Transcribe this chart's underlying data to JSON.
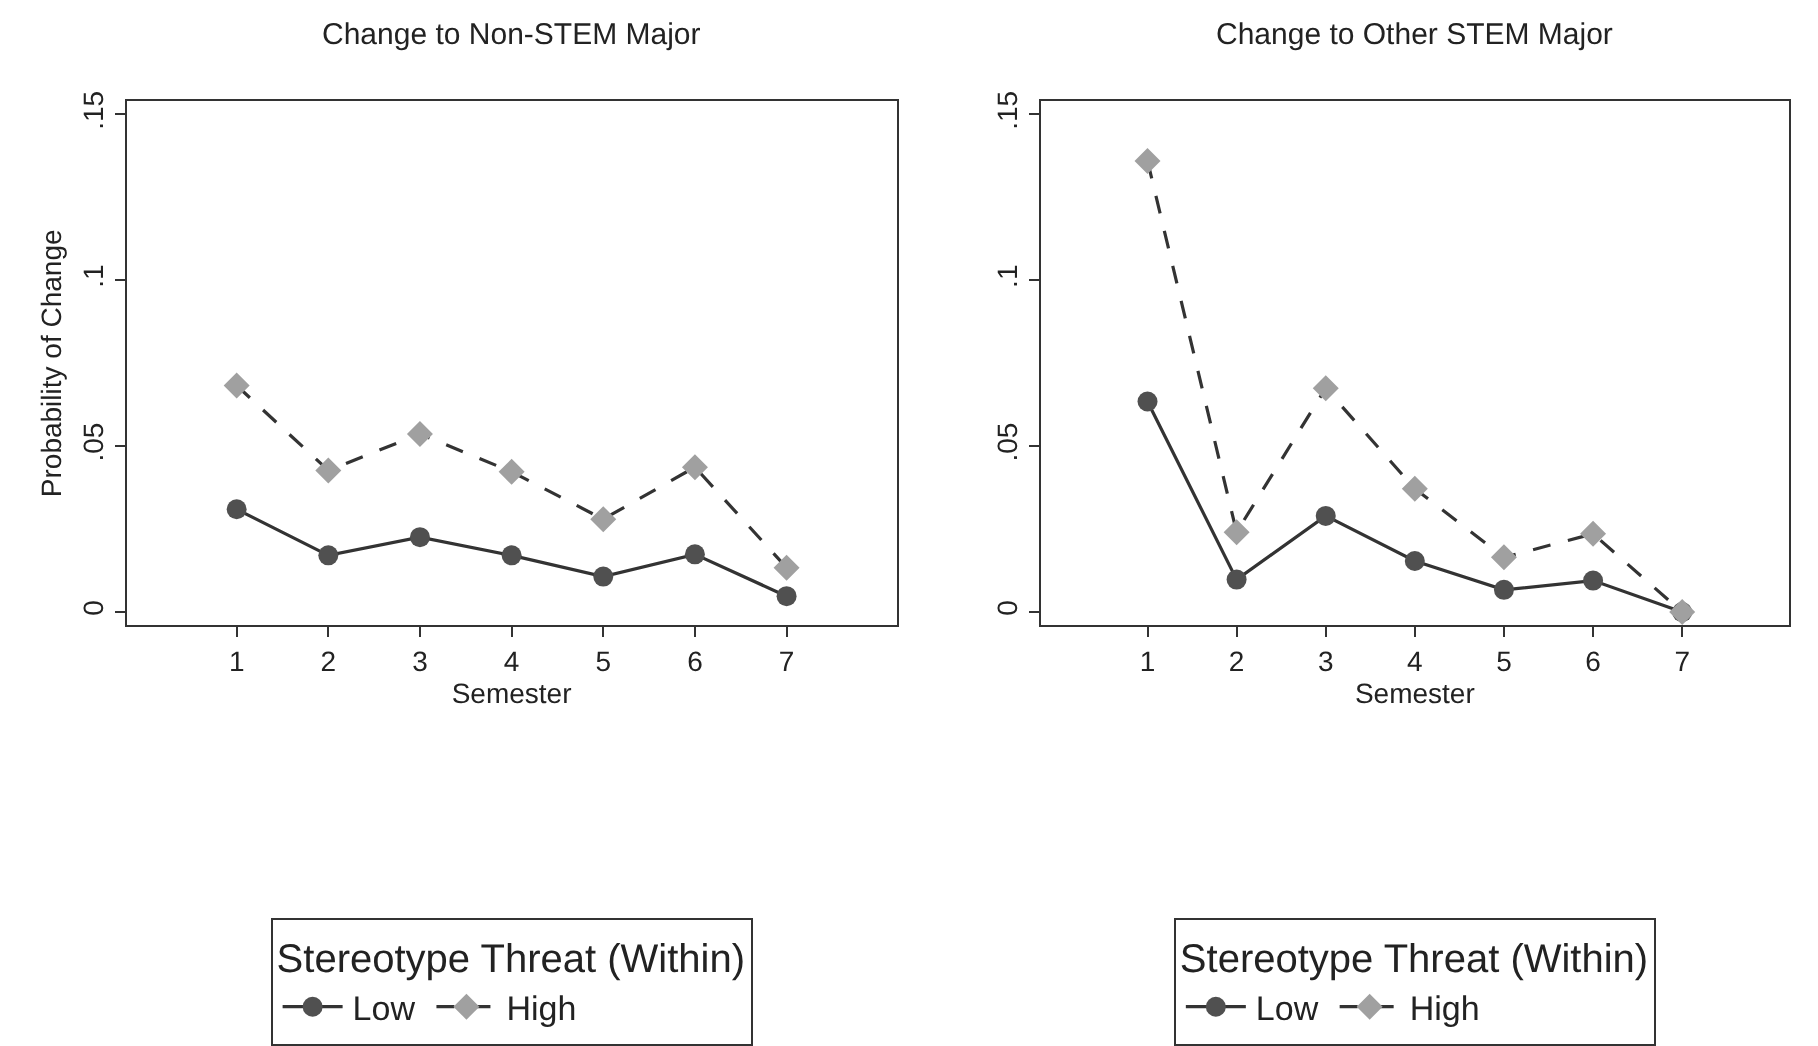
{
  "chart_data": [
    {
      "type": "line",
      "title": "Change to Non-STEM Major",
      "xlabel": "Semester",
      "ylabel": "Probability of Change",
      "legend_title": "Stereotype Threat (Within)",
      "legend": "bottom",
      "grid": false,
      "x": [
        1,
        2,
        3,
        4,
        5,
        6,
        7
      ],
      "series": [
        {
          "name": "Low",
          "color": "#505050",
          "marker": "circle",
          "line_style": "solid",
          "values": [
            0.031,
            0.0171,
            0.0226,
            0.0171,
            0.0107,
            0.0174,
            0.0048
          ]
        },
        {
          "name": "High",
          "color": "#a0a0a0",
          "marker": "diamond",
          "line_style": "dashed",
          "values": [
            0.0683,
            0.0427,
            0.0537,
            0.0423,
            0.028,
            0.0437,
            0.0134
          ]
        }
      ],
      "xlim": [
        -0.2,
        8.2
      ],
      "xticks": [
        1,
        2,
        3,
        4,
        5,
        6,
        7
      ],
      "ylim": [
        -0.004,
        0.154
      ],
      "yticks": [
        0,
        {
          "value": 0.05,
          "label": ".05"
        },
        {
          "value": 0.1,
          "label": ".1"
        },
        {
          "value": 0.15,
          "label": ".15"
        }
      ]
    },
    {
      "type": "line",
      "title": "Change to Other STEM Major",
      "xlabel": "Semester",
      "legend_title": "Stereotype Threat (Within)",
      "legend": "bottom",
      "grid": false,
      "x": [
        1,
        2,
        3,
        4,
        5,
        6,
        7
      ],
      "series": [
        {
          "name": "Low",
          "color": "#505050",
          "marker": "circle",
          "line_style": "solid",
          "values": [
            0.0635,
            0.0098,
            0.029,
            0.0154,
            0.0067,
            0.0095,
            0.0
          ]
        },
        {
          "name": "High",
          "color": "#a0a0a0",
          "marker": "diamond",
          "line_style": "dashed",
          "values": [
            0.136,
            0.0241,
            0.0675,
            0.0372,
            0.0165,
            0.0236,
            0.0
          ]
        }
      ],
      "xlim": [
        -0.2,
        8.2
      ],
      "xticks": [
        1,
        2,
        3,
        4,
        5,
        6,
        7
      ],
      "ylim": [
        -0.004,
        0.154
      ],
      "yticks": [
        0,
        {
          "value": 0.05,
          "label": ".05"
        },
        {
          "value": 0.1,
          "label": ".1"
        },
        {
          "value": 0.15,
          "label": ".15"
        }
      ]
    }
  ]
}
